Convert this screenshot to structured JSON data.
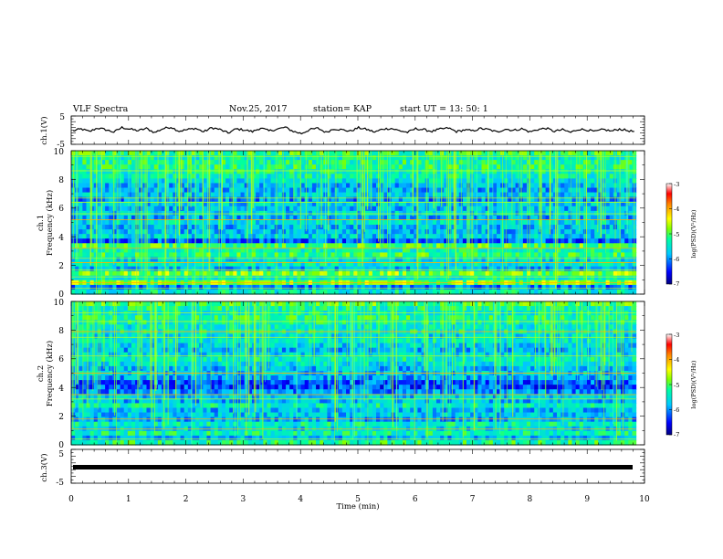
{
  "header": {
    "title": "VLF Spectra",
    "date": "Nov.25, 2017",
    "station": "station= KAP",
    "start": "start  UT =   13: 50: 1"
  },
  "chart_data": {
    "type": "heatmap",
    "xlabel": "Time (min)",
    "xlim": [
      0,
      10
    ],
    "xticks": [
      "0",
      "1",
      "2",
      "3",
      "4",
      "5",
      "6",
      "7",
      "8",
      "9",
      "10"
    ],
    "data_end_min": 9.85,
    "panels": [
      {
        "id": "ch1-wave",
        "kind": "line",
        "ylabel": "ch.1(V)",
        "ylim": [
          -5,
          5
        ],
        "yticks": [
          "5",
          "-5"
        ],
        "series": [
          {
            "values": [
              -0.3,
              0.5,
              -0.6,
              0.9,
              0.2,
              -0.8,
              1.1,
              0.4,
              -0.2,
              0.7,
              -1.0,
              0.6,
              1.3,
              -0.4,
              0.2,
              0.8,
              -0.7,
              1.0,
              0.3,
              -1.2,
              0.5,
              0.1,
              -0.6,
              0.9,
              -0.3,
              0.4,
              1.2,
              -0.5,
              -1.4,
              0.2,
              0.8,
              -0.9,
              0.6,
              0.1,
              -0.4,
              1.0,
              0.3,
              -0.8,
              0.5,
              0.7,
              -0.2,
              -0.9,
              0.6,
              0.2,
              -0.5,
              0.4,
              0.9,
              -0.6,
              0.1,
              -0.3,
              0.7,
              0.2,
              -0.8,
              0.5,
              -0.1,
              0.6,
              -0.7,
              0.3,
              0.8,
              -0.5,
              0.2,
              -0.9,
              0.4,
              0.1,
              -0.6,
              0.3,
              -0.4,
              0.5,
              -0.2,
              -0.7
            ]
          }
        ]
      },
      {
        "id": "ch1-spec",
        "kind": "spectrogram",
        "ylabel": "ch.1",
        "ylabel2": "Frequency (kHz)",
        "ylim": [
          0,
          10
        ],
        "yticks": [
          "0",
          "2",
          "4",
          "6",
          "8",
          "10"
        ],
        "profile": [
          0.4,
          0.25,
          0.55,
          0.4,
          0.55,
          0.3,
          0.38,
          0.35,
          0.48,
          0.42,
          0.5,
          0.2,
          0.33,
          0.3,
          0.3,
          0.36,
          0.28,
          0.34,
          0.3,
          0.32,
          0.25,
          0.32,
          0.28,
          0.3,
          0.36,
          0.4,
          0.42,
          0.45,
          0.44,
          0.4,
          0.48
        ],
        "lines_khz": [
          0.4,
          0.8,
          1.2,
          1.7,
          2.2,
          2.5,
          3.2,
          5.2,
          5.6,
          6.4,
          6.7,
          8.6,
          9.6
        ],
        "colorbar": {
          "label": "log(PSD)(V²/Hz)",
          "range": [
            -7,
            -3
          ],
          "ticks": [
            "-3",
            "-4",
            "-5",
            "-6",
            "-7"
          ]
        }
      },
      {
        "id": "ch2-spec",
        "kind": "spectrogram",
        "ylabel": "ch.2",
        "ylabel2": "Frequency (kHz)",
        "ylim": [
          0,
          10
        ],
        "yticks": [
          "0",
          "2",
          "4",
          "6",
          "8",
          "10"
        ],
        "profile": [
          0.45,
          0.3,
          0.42,
          0.35,
          0.4,
          0.28,
          0.32,
          0.3,
          0.4,
          0.3,
          0.32,
          0.25,
          0.18,
          0.2,
          0.28,
          0.32,
          0.3,
          0.36,
          0.4,
          0.35,
          0.3,
          0.34,
          0.38,
          0.35,
          0.4,
          0.38,
          0.42,
          0.45,
          0.4,
          0.42,
          0.5
        ],
        "lines_khz": [
          0.4,
          1.1,
          1.8,
          3.2,
          3.5,
          5.0,
          6.2,
          7.5,
          7.9,
          8.6,
          9.2
        ],
        "colorbar": {
          "label": "log(PSD)(V²/Hz)",
          "range": [
            -7,
            -3
          ],
          "ticks": [
            "-3",
            "-4",
            "-5",
            "-6",
            "-7"
          ]
        }
      },
      {
        "id": "ch3-wave",
        "kind": "line",
        "ylabel": "ch.3(V)",
        "ylim": [
          -5,
          5
        ],
        "yticks": [
          "5",
          "-5"
        ],
        "series": [
          {
            "values": [
              0,
              0
            ]
          }
        ]
      }
    ]
  }
}
